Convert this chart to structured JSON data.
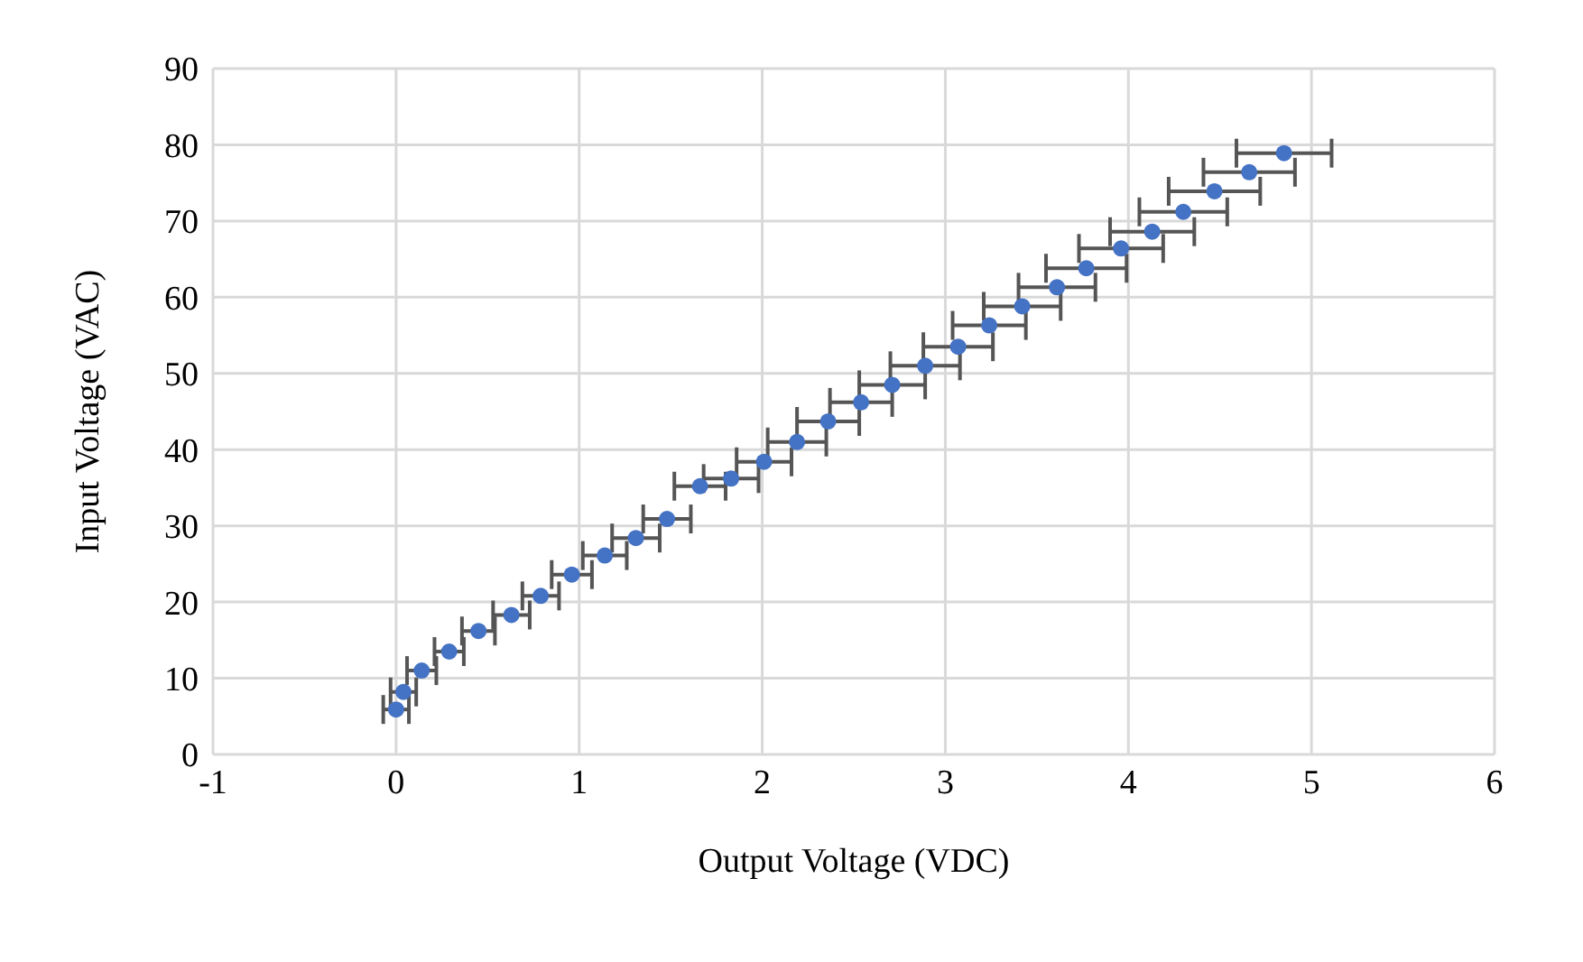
{
  "chart_data": {
    "type": "scatter",
    "xlabel": "Output Voltage (VDC)",
    "ylabel": "Input Voltage (VAC)",
    "x": [
      0,
      0.04,
      0.14,
      0.29,
      0.45,
      0.63,
      0.79,
      0.96,
      1.14,
      1.31,
      1.48,
      1.66,
      1.83,
      2.01,
      2.19,
      2.36,
      2.54,
      2.71,
      2.89,
      3.07,
      3.24,
      3.42,
      3.61,
      3.77,
      3.96,
      4.13,
      4.3,
      4.47,
      4.66,
      4.85
    ],
    "series": [
      {
        "color": "#4472c4",
        "values": [
          5.9,
          8.2,
          11,
          13.5,
          16.2,
          18.3,
          20.8,
          23.6,
          26.1,
          28.4,
          30.9,
          35.2,
          36.2,
          38.4,
          41,
          43.7,
          46.2,
          48.5,
          51,
          53.5,
          56.3,
          58.8,
          61.3,
          63.8,
          66.4,
          68.6,
          71.2,
          73.9,
          76.4,
          78.9
        ],
        "xerrors": [
          0.07,
          0.07,
          0.08,
          0.08,
          0.09,
          0.1,
          0.1,
          0.11,
          0.12,
          0.13,
          0.13,
          0.14,
          0.15,
          0.15,
          0.16,
          0.17,
          0.17,
          0.18,
          0.19,
          0.19,
          0.2,
          0.21,
          0.21,
          0.22,
          0.23,
          0.23,
          0.24,
          0.25,
          0.25,
          0.26
        ]
      }
    ],
    "xlim": [
      -1,
      6
    ],
    "xticks": [
      -1,
      0,
      1,
      2,
      3,
      4,
      5,
      6
    ],
    "ylim": [
      0,
      90
    ],
    "yticks": [
      0,
      10,
      20,
      30,
      40,
      50,
      60,
      70,
      80,
      90
    ],
    "grid": true,
    "marker": "circle"
  }
}
